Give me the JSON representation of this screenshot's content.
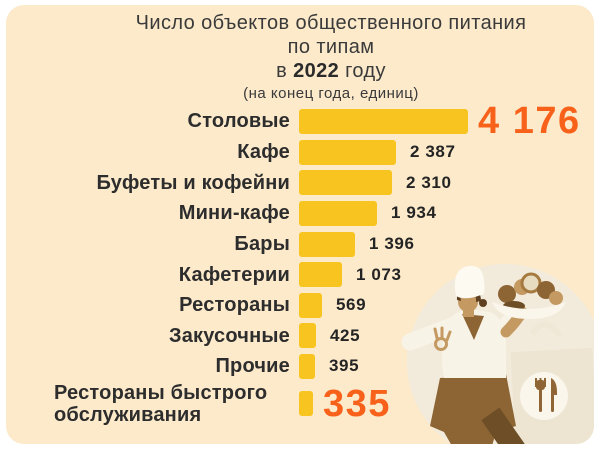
{
  "page": {
    "outer_background": "#FFFFFF",
    "card_background": "#FCEACB"
  },
  "title": {
    "line1": "Число объектов общественного питания",
    "line2": "по типам",
    "line3_pre": "в",
    "line3_year": "2022",
    "line3_post": "году",
    "subtitle": "(на конец года, единиц)"
  },
  "chart_data": {
    "type": "bar",
    "orientation": "horizontal",
    "title": "Число объектов общественного питания по типам в 2022 году",
    "unit_note": "на конец года, единиц",
    "xlabel": "",
    "ylabel": "",
    "xlim": [
      0,
      4176
    ],
    "grid": false,
    "bar_color": "#F8C41F",
    "value_color": "#242424",
    "highlight_color": "#F8611A",
    "categories": [
      "Столовые",
      "Кафе",
      "Буфеты и кофейни",
      "Мини-кафе",
      "Бары",
      "Кафетерии",
      "Рестораны",
      "Закусочные",
      "Прочие",
      "Рестораны быстрого обслуживания"
    ],
    "values": [
      4176,
      2387,
      2310,
      1934,
      1396,
      1073,
      569,
      425,
      395,
      335
    ],
    "rows": [
      {
        "label": "Столовые",
        "value": 4176,
        "display": "4 176",
        "highlight": true
      },
      {
        "label": "Кафе",
        "value": 2387,
        "display": "2 387",
        "highlight": false
      },
      {
        "label": "Буфеты и кофейни",
        "value": 2310,
        "display": "2 310",
        "highlight": false
      },
      {
        "label": "Мини-кафе",
        "value": 1934,
        "display": "1 934",
        "highlight": false
      },
      {
        "label": "Бары",
        "value": 1396,
        "display": "1 396",
        "highlight": false
      },
      {
        "label": "Кафетерии",
        "value": 1073,
        "display": "1 073",
        "highlight": false
      },
      {
        "label": "Рестораны",
        "value": 569,
        "display": "569",
        "highlight": false
      },
      {
        "label": "Закусочные",
        "value": 425,
        "display": "425",
        "highlight": false
      },
      {
        "label": "Прочие",
        "value": 395,
        "display": "395",
        "highlight": false
      },
      {
        "label": "Рестораны быстрого обслуживания",
        "value": 335,
        "display": "335",
        "highlight": true
      }
    ]
  },
  "illustration": {
    "name": "chef-with-dish-and-takeout-bag"
  }
}
